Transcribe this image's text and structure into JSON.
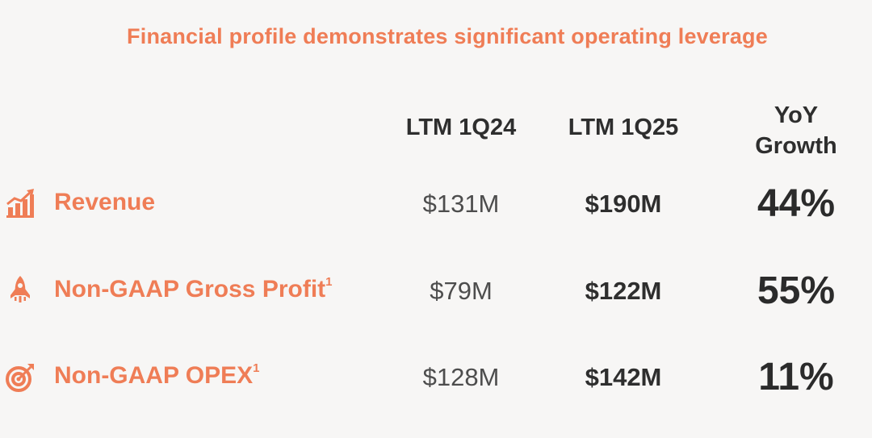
{
  "title": "Financial profile demonstrates significant operating leverage",
  "columns": {
    "ltm_prev": "LTM 1Q24",
    "ltm_curr": "LTM 1Q25",
    "growth_line1": "YoY",
    "growth_line2": "Growth"
  },
  "rows": [
    {
      "icon": "growth-chart-icon",
      "label": "Revenue",
      "footnote": "",
      "ltm_prev": "$131M",
      "ltm_curr": "$190M",
      "growth": "44%"
    },
    {
      "icon": "rocket-icon",
      "label": "Non-GAAP Gross Profit",
      "footnote": "1",
      "ltm_prev": "$79M",
      "ltm_curr": "$122M",
      "growth": "55%"
    },
    {
      "icon": "target-icon",
      "label": "Non-GAAP OPEX",
      "footnote": "1",
      "ltm_prev": "$128M",
      "ltm_curr": "$142M",
      "growth": "11%"
    }
  ],
  "colors": {
    "accent": "#ef7d56",
    "text": "#2e2e2e",
    "muted": "#4d4d4d",
    "background": "#f7f6f5"
  }
}
